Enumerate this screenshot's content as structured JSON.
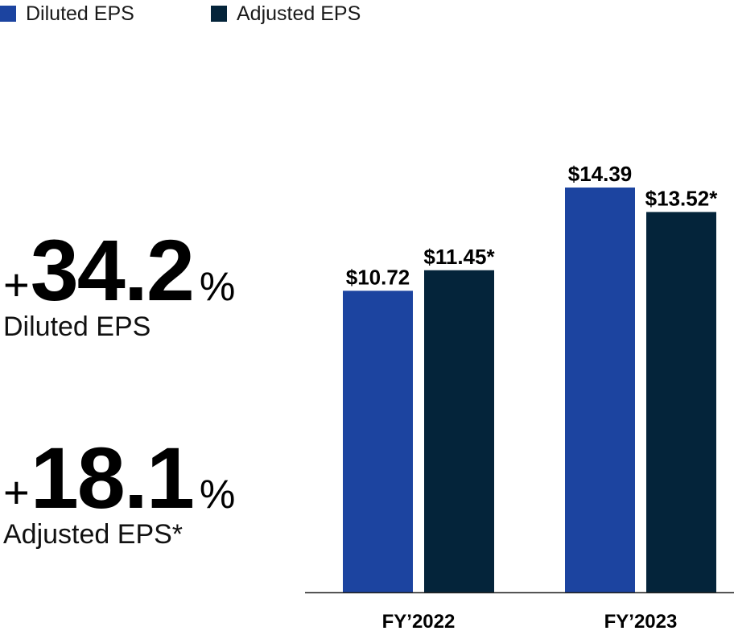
{
  "legend": {
    "items": [
      {
        "label": "Diluted EPS",
        "color": "#1c44a0"
      },
      {
        "label": "Adjusted EPS",
        "color": "#04243a"
      }
    ]
  },
  "stats": [
    {
      "plus": "+",
      "number": "34.2",
      "percent": "%",
      "label": "Diluted EPS"
    },
    {
      "plus": "+",
      "number": "18.1",
      "percent": "%",
      "label": "Adjusted EPS*"
    }
  ],
  "chart_data": {
    "type": "bar",
    "title": "",
    "xlabel": "",
    "ylabel": "",
    "categories": [
      "FY’2022",
      "FY’2023"
    ],
    "series": [
      {
        "name": "Diluted EPS",
        "color": "#1c44a0",
        "values": [
          10.72,
          14.39
        ],
        "labels": [
          "$10.72",
          "$14.39"
        ]
      },
      {
        "name": "Adjusted EPS",
        "color": "#04243a",
        "values": [
          11.45,
          13.52
        ],
        "labels": [
          "$11.45*",
          "$13.52*"
        ]
      }
    ],
    "ylim": [
      0,
      14.39
    ],
    "grid": false,
    "legend": "top-left"
  }
}
